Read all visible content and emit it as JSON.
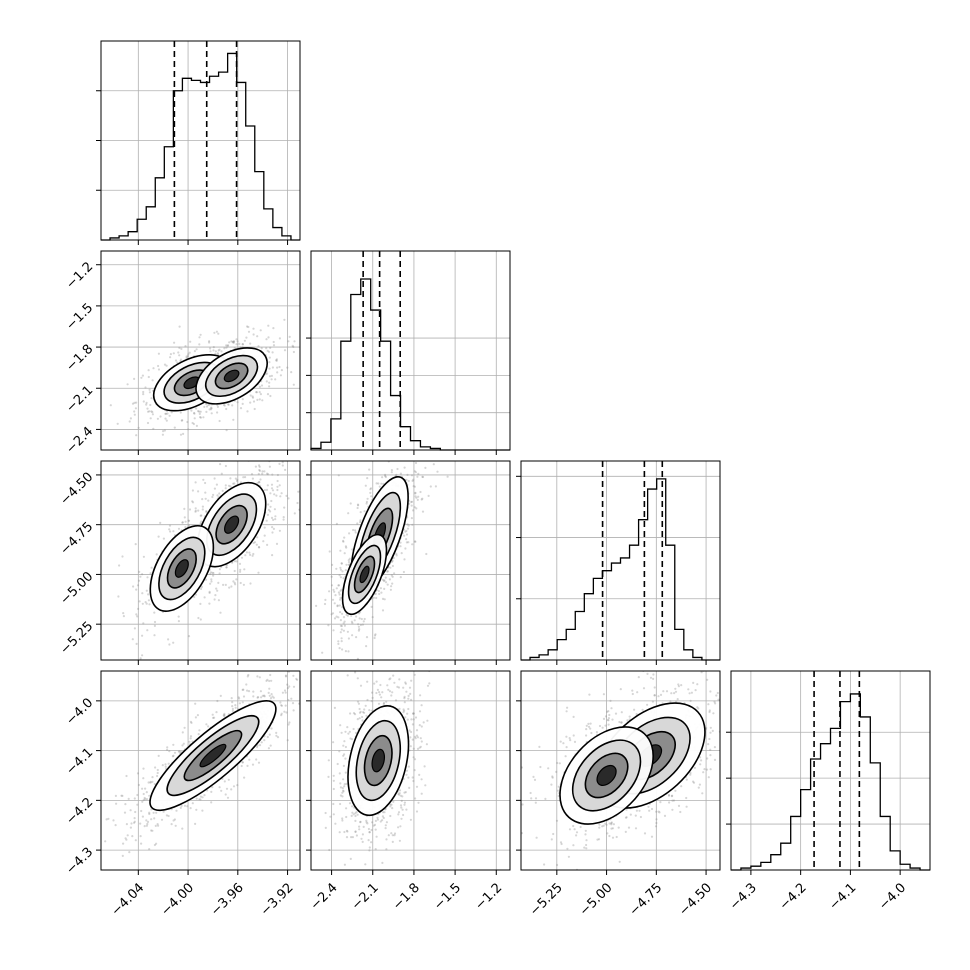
{
  "chart_data": {
    "type": "corner",
    "description": "",
    "grid": true,
    "colors": {
      "scatter": "#7f7f7f",
      "line": "#000000",
      "grid": "#b0b0b0"
    },
    "parameters": [
      {
        "range": [
          -4.07,
          -3.91
        ],
        "ticks": [
          -4.04,
          -4.0,
          -3.96,
          -3.92
        ],
        "tick_labels": [
          "−4.04",
          "−4.00",
          "−3.96",
          "−3.92"
        ]
      },
      {
        "range": [
          -2.55,
          -1.1
        ],
        "ticks": [
          -2.4,
          -2.1,
          -1.8,
          -1.5,
          -1.2
        ],
        "tick_labels": [
          "−2.4",
          "−2.1",
          "−1.8",
          "−1.5",
          "−1.2"
        ]
      },
      {
        "range": [
          -5.43,
          -4.43
        ],
        "ticks": [
          -5.25,
          -5.0,
          -4.75,
          -4.5
        ],
        "tick_labels": [
          "−5.25",
          "−5.00",
          "−4.75",
          "−4.50"
        ]
      },
      {
        "range": [
          -4.34,
          -3.94
        ],
        "ticks": [
          -4.3,
          -4.2,
          -4.1,
          -4.0
        ],
        "tick_labels": [
          "−4.3",
          "−4.2",
          "−4.1",
          "−4.0"
        ]
      }
    ],
    "histograms": [
      {
        "edges_range": [
          -4.07,
          -3.91
        ],
        "counts": [
          0,
          1,
          2,
          4,
          10,
          16,
          30,
          45,
          72,
          78,
          77,
          76,
          79,
          81,
          90,
          76,
          55,
          33,
          15,
          6,
          2,
          0
        ],
        "quantiles": [
          -4.011,
          -3.985,
          -3.961
        ],
        "ymax": 96
      },
      {
        "edges_range": [
          -2.55,
          -1.1
        ],
        "counts": [
          1,
          5,
          20,
          70,
          100,
          110,
          90,
          70,
          35,
          15,
          6,
          2,
          1,
          0,
          0,
          0,
          0,
          0,
          0,
          0
        ],
        "quantiles": [
          -2.17,
          -2.05,
          -1.9
        ],
        "ymax": 128
      },
      {
        "edges_range": [
          -5.43,
          -4.43
        ],
        "counts": [
          0,
          1,
          2,
          4,
          8,
          12,
          19,
          26,
          32,
          35,
          38,
          40,
          45,
          55,
          67,
          71,
          45,
          12,
          4,
          1,
          0,
          0
        ],
        "quantiles": [
          -5.02,
          -4.81,
          -4.72
        ],
        "ymax": 78
      },
      {
        "edges_range": [
          -4.34,
          -3.94
        ],
        "counts": [
          0,
          1,
          2,
          4,
          8,
          14,
          28,
          42,
          58,
          66,
          74,
          88,
          92,
          80,
          56,
          28,
          10,
          3,
          1,
          0
        ],
        "quantiles": [
          -4.173,
          -4.121,
          -4.082
        ],
        "ymax": 104
      }
    ],
    "pairs": [
      {
        "row": 1,
        "col": 0,
        "modes": [
          {
            "x": -3.997,
            "y": -2.06,
            "sx": 0.015,
            "sy": 0.1,
            "rho": 0.45,
            "w": 0.5
          },
          {
            "x": -3.965,
            "y": -2.01,
            "sx": 0.014,
            "sy": 0.1,
            "rho": 0.45,
            "w": 0.5
          }
        ]
      },
      {
        "row": 2,
        "col": 0,
        "modes": [
          {
            "x": -3.965,
            "y": -4.75,
            "sx": 0.013,
            "sy": 0.1,
            "rho": 0.5,
            "w": 0.7
          },
          {
            "x": -4.005,
            "y": -4.97,
            "sx": 0.013,
            "sy": 0.11,
            "rho": 0.5,
            "w": 0.3
          }
        ]
      },
      {
        "row": 2,
        "col": 1,
        "modes": [
          {
            "x": -2.05,
            "y": -4.8,
            "sx": 0.1,
            "sy": 0.14,
            "rho": 0.65,
            "w": 0.6
          },
          {
            "x": -2.16,
            "y": -5.0,
            "sx": 0.08,
            "sy": 0.1,
            "rho": 0.6,
            "w": 0.4
          }
        ]
      },
      {
        "row": 3,
        "col": 0,
        "modes": [
          {
            "x": -3.98,
            "y": -4.11,
            "sx": 0.023,
            "sy": 0.05,
            "rho": 0.85,
            "w": 1.0
          }
        ]
      },
      {
        "row": 3,
        "col": 1,
        "modes": [
          {
            "x": -2.06,
            "y": -4.12,
            "sx": 0.1,
            "sy": 0.05,
            "rho": 0.3,
            "w": 1.0
          }
        ]
      },
      {
        "row": 3,
        "col": 2,
        "modes": [
          {
            "x": -4.78,
            "y": -4.11,
            "sx": 0.13,
            "sy": 0.05,
            "rho": 0.45,
            "w": 0.7
          },
          {
            "x": -5.0,
            "y": -4.15,
            "sx": 0.12,
            "sy": 0.05,
            "rho": 0.4,
            "w": 0.3
          }
        ]
      }
    ]
  }
}
